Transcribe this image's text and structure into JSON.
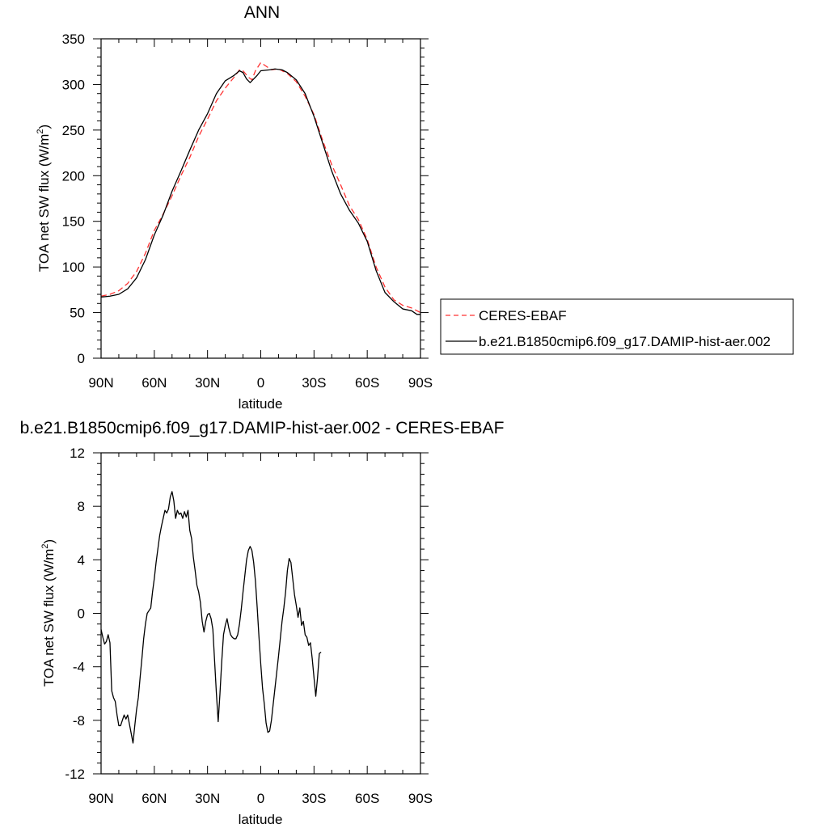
{
  "colors": {
    "model_line": "#000000",
    "obs_line": "#ff3333",
    "axis": "#000000",
    "background": "#ffffff"
  },
  "chart_data": [
    {
      "type": "line",
      "title": "ANN",
      "xlabel": "latitude",
      "ylabel": "TOA net SW flux (W/m",
      "ylabel_sup": "2",
      "ylabel_end": ")",
      "xlim": [
        90,
        -90
      ],
      "ylim": [
        0,
        350
      ],
      "x_ticks": [
        {
          "value": 90,
          "label": "90N"
        },
        {
          "value": 60,
          "label": "60N"
        },
        {
          "value": 30,
          "label": "30N"
        },
        {
          "value": 0,
          "label": "0"
        },
        {
          "value": -30,
          "label": "30S"
        },
        {
          "value": -60,
          "label": "60S"
        },
        {
          "value": -90,
          "label": "90S"
        }
      ],
      "y_ticks": [
        {
          "value": 0,
          "label": "0"
        },
        {
          "value": 50,
          "label": "50"
        },
        {
          "value": 100,
          "label": "100"
        },
        {
          "value": 150,
          "label": "150"
        },
        {
          "value": 200,
          "label": "200"
        },
        {
          "value": 250,
          "label": "250"
        },
        {
          "value": 300,
          "label": "300"
        },
        {
          "value": 350,
          "label": "350"
        }
      ],
      "grid": false,
      "legend": "right",
      "series": [
        {
          "name": "CERES-EBAF",
          "style": "dashed",
          "color": "#ff3333",
          "points": [
            [
              90,
              68
            ],
            [
              85,
              70
            ],
            [
              80,
              74
            ],
            [
              75,
              82
            ],
            [
              70,
              95
            ],
            [
              65,
              115
            ],
            [
              60,
              140
            ],
            [
              55,
              158
            ],
            [
              50,
              178
            ],
            [
              45,
              200
            ],
            [
              40,
              220
            ],
            [
              35,
              243
            ],
            [
              30,
              262
            ],
            [
              25,
              282
            ],
            [
              20,
              296
            ],
            [
              15,
              308
            ],
            [
              12,
              316
            ],
            [
              10,
              315
            ],
            [
              7,
              308
            ],
            [
              5,
              305
            ],
            [
              3,
              315
            ],
            [
              0,
              324
            ],
            [
              -3,
              320
            ],
            [
              -6,
              316
            ],
            [
              -10,
              317
            ],
            [
              -15,
              312
            ],
            [
              -20,
              303
            ],
            [
              -25,
              287
            ],
            [
              -30,
              267
            ],
            [
              -35,
              238
            ],
            [
              -40,
              212
            ],
            [
              -45,
              190
            ],
            [
              -50,
              167
            ],
            [
              -55,
              152
            ],
            [
              -60,
              130
            ],
            [
              -65,
              100
            ],
            [
              -70,
              78
            ],
            [
              -75,
              64
            ],
            [
              -80,
              58
            ],
            [
              -85,
              55
            ],
            [
              -90,
              50
            ]
          ]
        },
        {
          "name": "b.e21.B1850cmip6.f09_g17.DAMIP-hist-aer.002",
          "style": "solid",
          "color": "#000000",
          "points": [
            [
              90,
              67
            ],
            [
              85,
              68
            ],
            [
              80,
              70
            ],
            [
              75,
              76
            ],
            [
              70,
              88
            ],
            [
              65,
              108
            ],
            [
              60,
              135
            ],
            [
              55,
              157
            ],
            [
              50,
              183
            ],
            [
              45,
              205
            ],
            [
              40,
              228
            ],
            [
              35,
              250
            ],
            [
              30,
              268
            ],
            [
              25,
              290
            ],
            [
              20,
              304
            ],
            [
              15,
              310
            ],
            [
              12,
              315
            ],
            [
              10,
              313
            ],
            [
              8,
              306
            ],
            [
              6,
              302
            ],
            [
              4,
              306
            ],
            [
              2,
              310
            ],
            [
              0,
              315
            ],
            [
              -5,
              316
            ],
            [
              -8,
              317
            ],
            [
              -12,
              316
            ],
            [
              -15,
              313
            ],
            [
              -20,
              305
            ],
            [
              -25,
              290
            ],
            [
              -30,
              265
            ],
            [
              -35,
              235
            ],
            [
              -40,
              205
            ],
            [
              -45,
              180
            ],
            [
              -50,
              162
            ],
            [
              -55,
              148
            ],
            [
              -60,
              128
            ],
            [
              -65,
              96
            ],
            [
              -70,
              72
            ],
            [
              -75,
              62
            ],
            [
              -80,
              54
            ],
            [
              -85,
              52
            ],
            [
              -88,
              48
            ],
            [
              -90,
              48
            ]
          ]
        }
      ]
    },
    {
      "type": "line",
      "title": "b.e21.B1850cmip6.f09_g17.DAMIP-hist-aer.002 - CERES-EBAF",
      "xlabel": "latitude",
      "ylabel": "TOA net SW flux (W/m",
      "ylabel_sup": "2",
      "ylabel_end": ")",
      "xlim": [
        90,
        -90
      ],
      "ylim": [
        -12,
        12
      ],
      "x_ticks": [
        {
          "value": 90,
          "label": "90N"
        },
        {
          "value": 60,
          "label": "60N"
        },
        {
          "value": 30,
          "label": "30N"
        },
        {
          "value": 0,
          "label": "0"
        },
        {
          "value": -30,
          "label": "30S"
        },
        {
          "value": -60,
          "label": "60S"
        },
        {
          "value": -90,
          "label": "90S"
        }
      ],
      "y_ticks": [
        {
          "value": -12,
          "label": "-12"
        },
        {
          "value": -8,
          "label": "-8"
        },
        {
          "value": -4,
          "label": "-4"
        },
        {
          "value": 0,
          "label": "0"
        },
        {
          "value": 4,
          "label": "4"
        },
        {
          "value": 8,
          "label": "8"
        },
        {
          "value": 12,
          "label": "12"
        }
      ],
      "grid": false,
      "legend": "none",
      "series": [
        {
          "name": "",
          "style": "solid",
          "color": "#000000",
          "points": [
            [
              90,
              -1.2
            ],
            [
              89,
              -1.8
            ],
            [
              88,
              -2.3
            ],
            [
              87,
              -2.1
            ],
            [
              86,
              -1.6
            ],
            [
              85,
              -2.2
            ],
            [
              84,
              -5.8
            ],
            [
              83,
              -6.3
            ],
            [
              82,
              -6.6
            ],
            [
              81,
              -7.6
            ],
            [
              80,
              -8.4
            ],
            [
              79,
              -8.4
            ],
            [
              78,
              -8.0
            ],
            [
              77,
              -7.6
            ],
            [
              76,
              -7.9
            ],
            [
              75,
              -7.6
            ],
            [
              74,
              -8.3
            ],
            [
              73,
              -9.0
            ],
            [
              72,
              -9.7
            ],
            [
              71,
              -8.4
            ],
            [
              70,
              -7.2
            ],
            [
              69,
              -6.3
            ],
            [
              68,
              -4.8
            ],
            [
              67,
              -3.4
            ],
            [
              66,
              -1.9
            ],
            [
              65,
              -0.8
            ],
            [
              64,
              0.0
            ],
            [
              63,
              0.2
            ],
            [
              62,
              0.4
            ],
            [
              61,
              1.6
            ],
            [
              60,
              2.6
            ],
            [
              59,
              3.8
            ],
            [
              58,
              4.8
            ],
            [
              57,
              5.8
            ],
            [
              56,
              6.5
            ],
            [
              55,
              7.1
            ],
            [
              54,
              7.7
            ],
            [
              53,
              7.5
            ],
            [
              52,
              7.8
            ],
            [
              51,
              8.7
            ],
            [
              50,
              9.1
            ],
            [
              49,
              8.4
            ],
            [
              48,
              7.1
            ],
            [
              47,
              7.7
            ],
            [
              46,
              7.4
            ],
            [
              45,
              7.5
            ],
            [
              44,
              7.1
            ],
            [
              43,
              7.6
            ],
            [
              42,
              7.2
            ],
            [
              41,
              7.7
            ],
            [
              40,
              6.2
            ],
            [
              39,
              5.6
            ],
            [
              38,
              4.2
            ],
            [
              37,
              3.2
            ],
            [
              36,
              2.1
            ],
            [
              35,
              1.6
            ],
            [
              34,
              0.8
            ],
            [
              33,
              -0.6
            ],
            [
              32,
              -1.4
            ],
            [
              31,
              -0.6
            ],
            [
              30,
              -0.1
            ],
            [
              29,
              0.0
            ],
            [
              28,
              -0.4
            ],
            [
              27,
              -1.2
            ],
            [
              26,
              -3.6
            ],
            [
              25,
              -6.0
            ],
            [
              24,
              -8.1
            ],
            [
              23,
              -6.0
            ],
            [
              22,
              -3.6
            ],
            [
              21,
              -1.6
            ],
            [
              20,
              -0.9
            ],
            [
              19,
              -0.4
            ],
            [
              18,
              -1.1
            ],
            [
              17,
              -1.6
            ],
            [
              16,
              -1.8
            ],
            [
              15,
              -1.9
            ],
            [
              14,
              -1.9
            ],
            [
              13,
              -1.6
            ],
            [
              12,
              -0.8
            ],
            [
              11,
              0.3
            ],
            [
              10,
              1.6
            ],
            [
              9,
              2.8
            ],
            [
              8,
              4.0
            ],
            [
              7,
              4.7
            ],
            [
              6,
              5.0
            ],
            [
              5,
              4.7
            ],
            [
              4,
              3.8
            ],
            [
              3,
              2.4
            ],
            [
              2,
              0.4
            ],
            [
              1,
              -1.8
            ],
            [
              0,
              -3.8
            ],
            [
              -1,
              -5.6
            ],
            [
              -2,
              -6.8
            ],
            [
              -3,
              -8.2
            ],
            [
              -4,
              -8.9
            ],
            [
              -5,
              -8.8
            ],
            [
              -6,
              -8.0
            ],
            [
              -7,
              -6.8
            ],
            [
              -8,
              -5.6
            ],
            [
              -9,
              -4.4
            ],
            [
              -10,
              -3.2
            ],
            [
              -11,
              -1.9
            ],
            [
              -12,
              -0.6
            ],
            [
              -13,
              0.4
            ],
            [
              -14,
              1.6
            ],
            [
              -15,
              3.2
            ],
            [
              -16,
              4.1
            ],
            [
              -17,
              3.8
            ],
            [
              -18,
              2.6
            ],
            [
              -19,
              1.4
            ],
            [
              -20,
              0.6
            ],
            [
              -21,
              -0.3
            ],
            [
              -22,
              0.4
            ],
            [
              -23,
              -0.9
            ],
            [
              -24,
              -0.6
            ],
            [
              -25,
              -1.6
            ],
            [
              -26,
              -1.8
            ],
            [
              -27,
              -2.4
            ],
            [
              -28,
              -2.2
            ],
            [
              -29,
              -3.4
            ],
            [
              -30,
              -4.8
            ],
            [
              -31,
              -6.2
            ],
            [
              -32,
              -4.8
            ],
            [
              -33,
              -3.0
            ],
            [
              -34,
              -2.9
            ]
          ]
        }
      ]
    }
  ]
}
